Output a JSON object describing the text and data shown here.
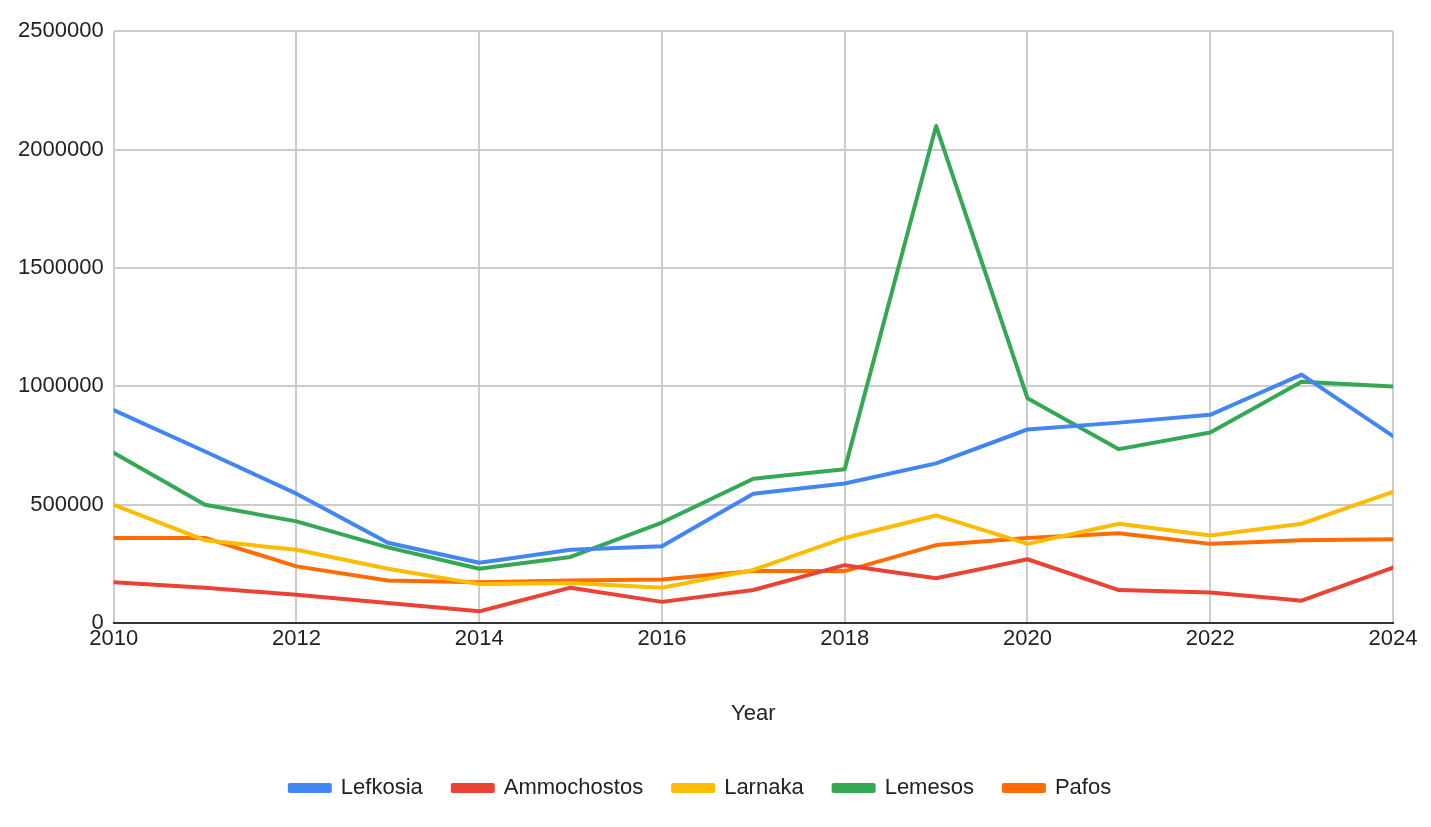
{
  "chart_data": {
    "type": "line",
    "xlabel": "Year",
    "x": [
      2010,
      2011,
      2012,
      2013,
      2014,
      2015,
      2016,
      2017,
      2018,
      2019,
      2020,
      2021,
      2022,
      2023,
      2024
    ],
    "series": [
      {
        "name": "Lefkosia",
        "color": "#4285f4",
        "values": [
          900000,
          725000,
          547000,
          340000,
          255000,
          310000,
          325000,
          547000,
          590000,
          675000,
          818000,
          847000,
          880000,
          1050000,
          790000
        ]
      },
      {
        "name": "Ammochostos",
        "color": "#ea4335",
        "values": [
          173000,
          150000,
          120000,
          85000,
          50000,
          150000,
          90000,
          140000,
          245000,
          190000,
          270000,
          140000,
          130000,
          95000,
          235000
        ]
      },
      {
        "name": "Larnaka",
        "color": "#fbbc04",
        "values": [
          500000,
          350000,
          310000,
          230000,
          165000,
          170000,
          150000,
          225000,
          360000,
          455000,
          335000,
          420000,
          370000,
          420000,
          555000
        ]
      },
      {
        "name": "Lemesos",
        "color": "#34a853",
        "values": [
          720000,
          500000,
          430000,
          320000,
          230000,
          280000,
          425000,
          610000,
          650000,
          2100000,
          950000,
          735000,
          805000,
          1020000,
          1000000
        ]
      },
      {
        "name": "Pafos",
        "color": "#ff6d01",
        "values": [
          360000,
          360000,
          240000,
          180000,
          173000,
          180000,
          185000,
          220000,
          220000,
          330000,
          360000,
          380000,
          335000,
          350000,
          355000
        ]
      }
    ],
    "xlim": [
      2010,
      2024
    ],
    "xticks": [
      2010,
      2012,
      2014,
      2016,
      2018,
      2020,
      2022,
      2024
    ],
    "ylim": [
      0,
      2500000
    ],
    "yticks": [
      0,
      500000,
      1000000,
      1500000,
      2000000,
      2500000
    ],
    "grid": true,
    "legend": "bottom",
    "marker": "none",
    "line_style": "solid"
  }
}
